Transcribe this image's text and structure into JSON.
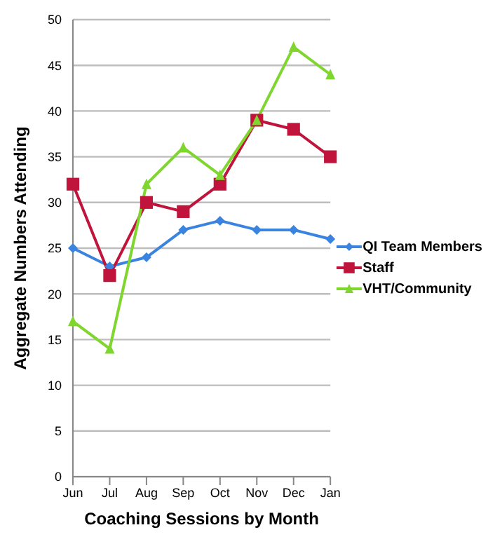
{
  "chart_data": {
    "type": "line",
    "xlabel": "Coaching Sessions by Month",
    "ylabel": "Aggregate Numbers Attending",
    "categories": [
      "Jun",
      "Jul",
      "Aug",
      "Sep",
      "Oct",
      "Nov",
      "Dec",
      "Jan"
    ],
    "series": [
      {
        "name": "QI Team Members",
        "color": "#3a84e0",
        "marker": "diamond",
        "values": [
          25,
          23,
          24,
          27,
          28,
          27,
          27,
          26
        ]
      },
      {
        "name": "Staff",
        "color": "#c0143c",
        "marker": "square",
        "values": [
          32,
          22,
          30,
          29,
          32,
          39,
          38,
          35
        ]
      },
      {
        "name": "VHT/Community",
        "color": "#7fd62e",
        "marker": "triangle",
        "values": [
          17,
          14,
          32,
          36,
          33,
          39,
          47,
          44
        ]
      }
    ],
    "ylim": [
      0,
      50
    ],
    "yticks": [
      0,
      5,
      10,
      15,
      20,
      25,
      30,
      35,
      40,
      45,
      50
    ],
    "grid": "y",
    "legend": "right",
    "line_style": "solid"
  }
}
